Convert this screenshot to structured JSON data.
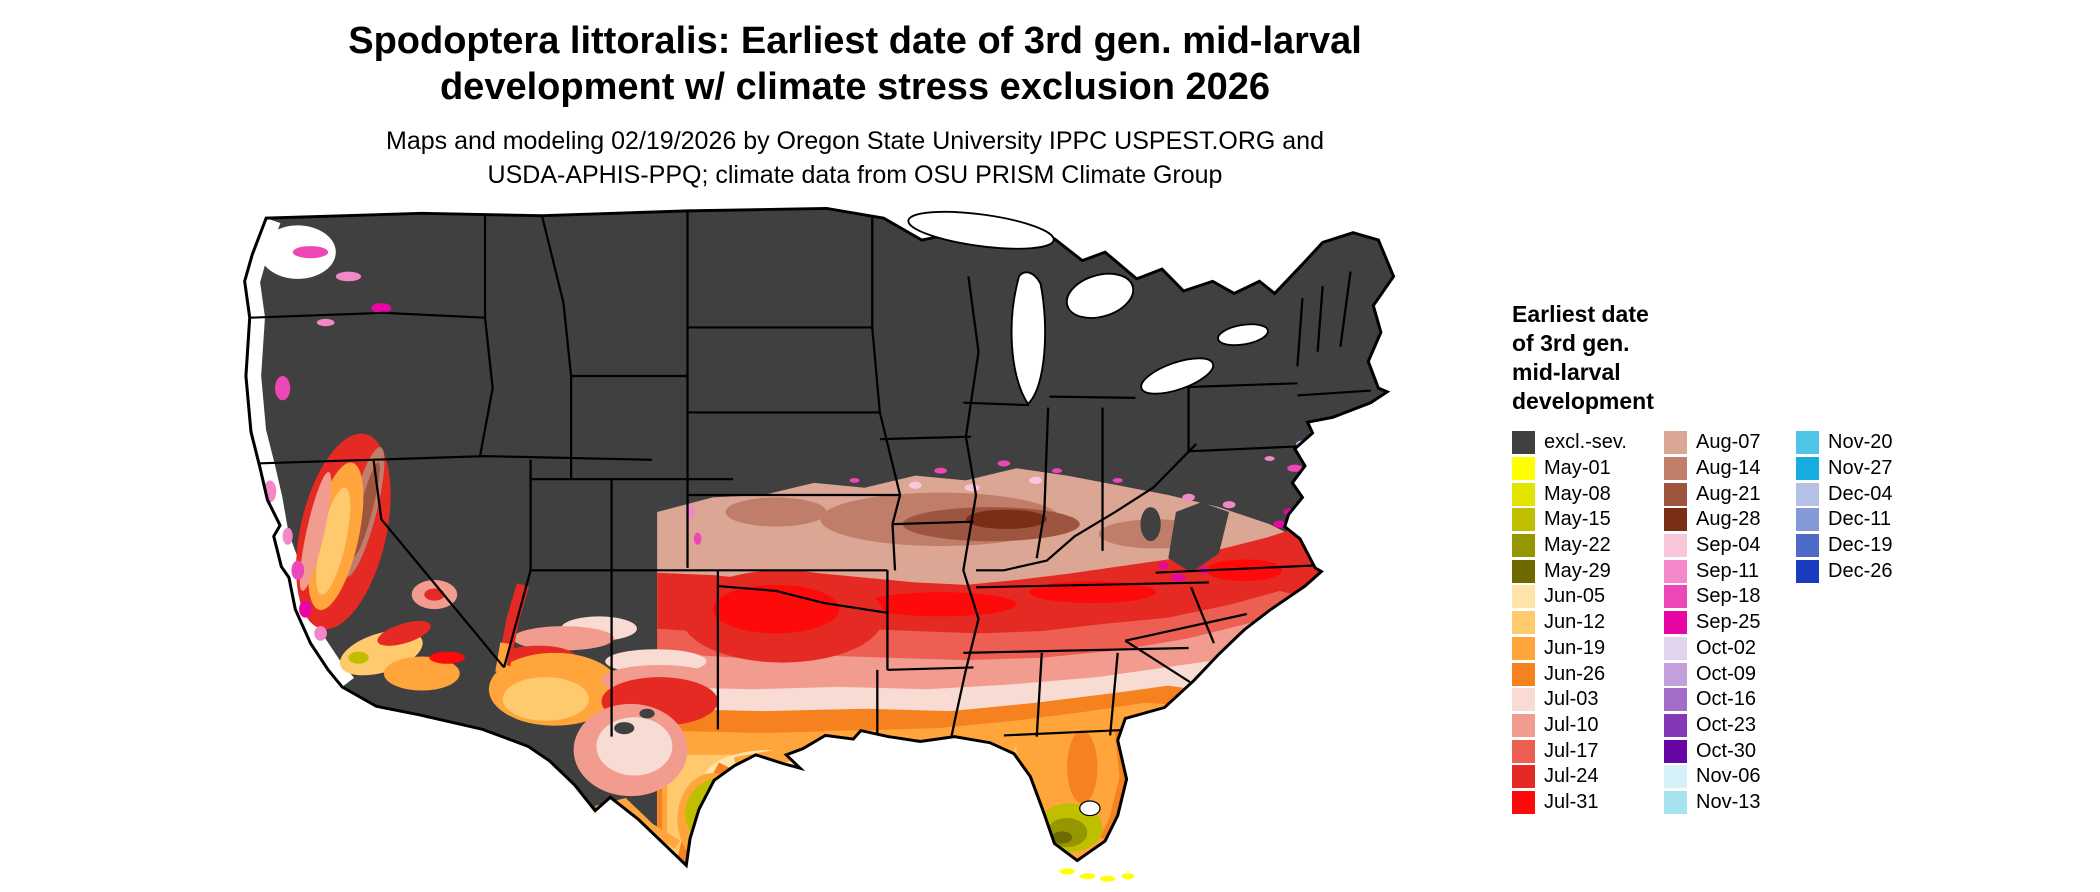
{
  "title": {
    "line1": "Spodoptera littoralis: Earliest date of 3rd gen. mid-larval",
    "line2": "development w/ climate stress exclusion 2026"
  },
  "subtitle": {
    "line1": "Maps and modeling 02/19/2026 by Oregon State University IPPC USPEST.ORG and",
    "line2": "USDA-APHIS-PPQ; climate data from OSU PRISM Climate Group"
  },
  "legend": {
    "title_lines": [
      "Earliest date",
      "of 3rd gen.",
      "mid-larval",
      "development"
    ],
    "columns": [
      [
        {
          "label": "excl.-sev.",
          "key": "excl"
        },
        {
          "label": "May-01",
          "key": "may01"
        },
        {
          "label": "May-08",
          "key": "may08"
        },
        {
          "label": "May-15",
          "key": "may15"
        },
        {
          "label": "May-22",
          "key": "may22"
        },
        {
          "label": "May-29",
          "key": "may29"
        },
        {
          "label": "Jun-05",
          "key": "jun05"
        },
        {
          "label": "Jun-12",
          "key": "jun12"
        },
        {
          "label": "Jun-19",
          "key": "jun19"
        },
        {
          "label": "Jun-26",
          "key": "jun26"
        },
        {
          "label": "Jul-03",
          "key": "jul03"
        },
        {
          "label": "Jul-10",
          "key": "jul10"
        },
        {
          "label": "Jul-17",
          "key": "jul17"
        },
        {
          "label": "Jul-24",
          "key": "jul24"
        },
        {
          "label": "Jul-31",
          "key": "jul31"
        }
      ],
      [
        {
          "label": "Aug-07",
          "key": "aug07"
        },
        {
          "label": "Aug-14",
          "key": "aug14"
        },
        {
          "label": "Aug-21",
          "key": "aug21"
        },
        {
          "label": "Aug-28",
          "key": "aug28"
        },
        {
          "label": "Sep-04",
          "key": "sep04"
        },
        {
          "label": "Sep-11",
          "key": "sep11"
        },
        {
          "label": "Sep-18",
          "key": "sep18"
        },
        {
          "label": "Sep-25",
          "key": "sep25"
        },
        {
          "label": "Oct-02",
          "key": "oct02"
        },
        {
          "label": "Oct-09",
          "key": "oct09"
        },
        {
          "label": "Oct-16",
          "key": "oct16"
        },
        {
          "label": "Oct-23",
          "key": "oct23"
        },
        {
          "label": "Oct-30",
          "key": "oct30"
        },
        {
          "label": "Nov-06",
          "key": "nov06"
        },
        {
          "label": "Nov-13",
          "key": "nov13"
        }
      ],
      [
        {
          "label": "Nov-20",
          "key": "nov20"
        },
        {
          "label": "Nov-27",
          "key": "nov27"
        },
        {
          "label": "Dec-04",
          "key": "dec04"
        },
        {
          "label": "Dec-11",
          "key": "dec11"
        },
        {
          "label": "Dec-19",
          "key": "dec19"
        },
        {
          "label": "Dec-26",
          "key": "dec26"
        }
      ]
    ]
  },
  "palette": {
    "excl": "#404040",
    "no_data": "#ffffff",
    "may01": "#ffff00",
    "may08": "#e3e300",
    "may15": "#bfbf00",
    "may22": "#969600",
    "may29": "#6e6a00",
    "jun05": "#ffe3a8",
    "jun12": "#ffc96e",
    "jun19": "#ffa53c",
    "jun26": "#f5821e",
    "jul03": "#f8dcd4",
    "jul10": "#f29b8f",
    "jul17": "#ec5f52",
    "jul24": "#e42a23",
    "jul31": "#ff0a0a",
    "aug07": "#dca694",
    "aug14": "#c07e6a",
    "aug21": "#9e5540",
    "aug28": "#7c2d16",
    "sep04": "#f9c7db",
    "sep11": "#f387c9",
    "sep18": "#ed46b6",
    "sep25": "#e705a3",
    "oct02": "#e2d3ee",
    "oct09": "#c3a0dc",
    "oct16": "#a46cc9",
    "oct23": "#8438b6",
    "oct30": "#6604a4",
    "nov06": "#d6f2f8",
    "nov13": "#a6e3f1",
    "nov20": "#4fc3e8",
    "nov27": "#16ace0",
    "dec04": "#b4c1e4",
    "dec11": "#8499d8",
    "dec19": "#4f6bc8",
    "dec26": "#1a3bbf"
  }
}
